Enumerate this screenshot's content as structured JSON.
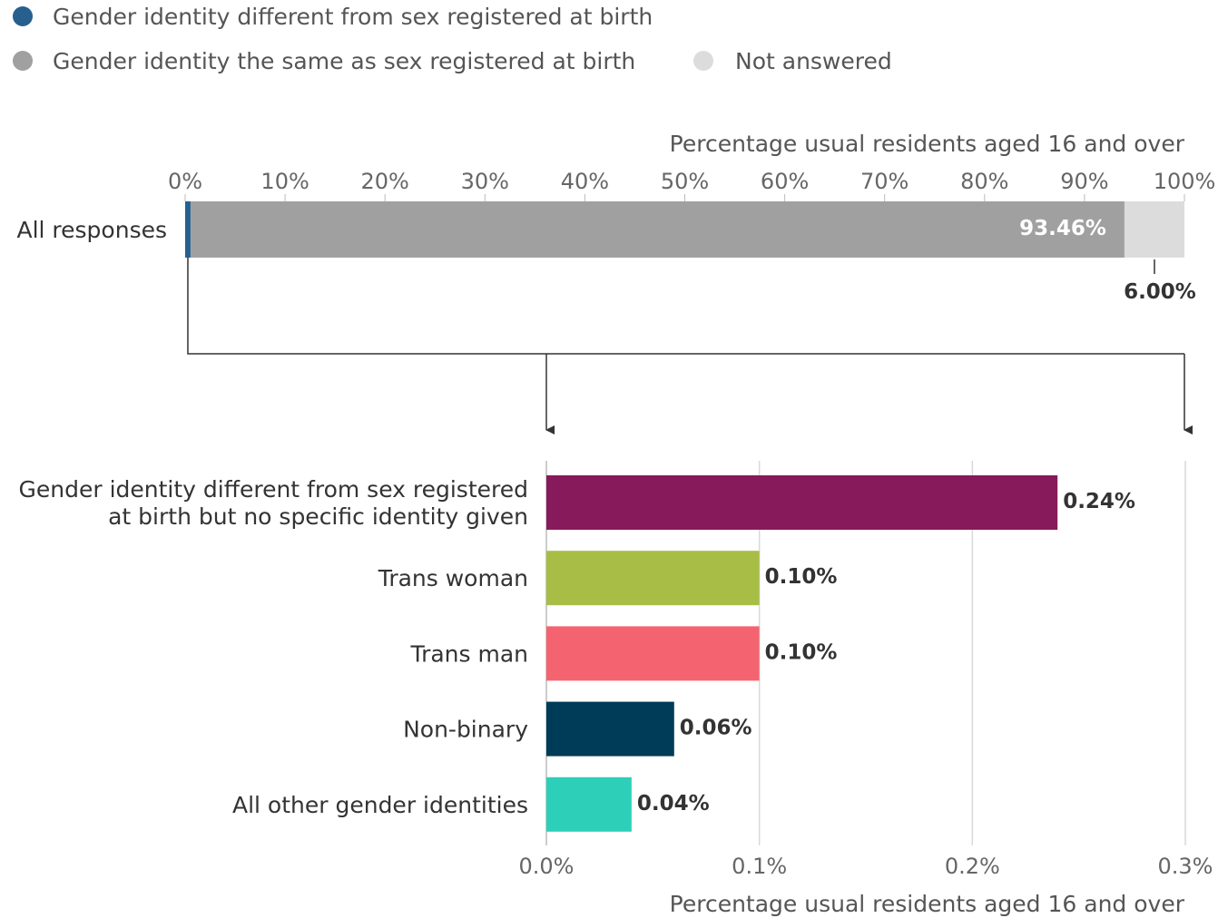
{
  "legend": [
    {
      "label": "Gender identity different from sex registered at birth",
      "color": "#27608f"
    },
    {
      "label": "Gender identity the same as sex registered at birth",
      "color": "#a0a0a0"
    },
    {
      "label": "Not answered",
      "color": "#dcdcdc"
    }
  ],
  "chart_data": [
    {
      "type": "bar",
      "orientation": "horizontal",
      "stacked": true,
      "xlabel": "Percentage usual residents aged 16 and over",
      "xlim": [
        0,
        100
      ],
      "xticks": [
        "0%",
        "10%",
        "20%",
        "30%",
        "40%",
        "50%",
        "60%",
        "70%",
        "80%",
        "90%",
        "100%"
      ],
      "categories": [
        "All responses"
      ],
      "series": [
        {
          "name": "Gender identity different from sex registered at birth",
          "values": [
            0.54
          ],
          "color": "#27608f"
        },
        {
          "name": "Gender identity the same as sex registered at birth",
          "values": [
            93.46
          ],
          "label": "93.46%",
          "color": "#a0a0a0"
        },
        {
          "name": "Not answered",
          "values": [
            6.0
          ],
          "label": "6.00%",
          "color": "#dcdcdc"
        }
      ]
    },
    {
      "type": "bar",
      "orientation": "horizontal",
      "xlabel": "Percentage usual residents aged 16 and over",
      "xlim": [
        0,
        0.3
      ],
      "xticks": [
        "0.0%",
        "0.1%",
        "0.2%",
        "0.3%"
      ],
      "grid": true,
      "categories": [
        [
          "Gender identity different from sex registered",
          "at birth but no specific identity given"
        ],
        [
          "Trans woman"
        ],
        [
          "Trans man"
        ],
        [
          "Non-binary"
        ],
        [
          "All other gender identities"
        ]
      ],
      "values": [
        0.24,
        0.1,
        0.1,
        0.06,
        0.04
      ],
      "labels": [
        "0.24%",
        "0.10%",
        "0.10%",
        "0.06%",
        "0.04%"
      ],
      "colors": [
        "#871a5b",
        "#a8bd45",
        "#f46470",
        "#003c57",
        "#2ecfb9"
      ]
    }
  ]
}
